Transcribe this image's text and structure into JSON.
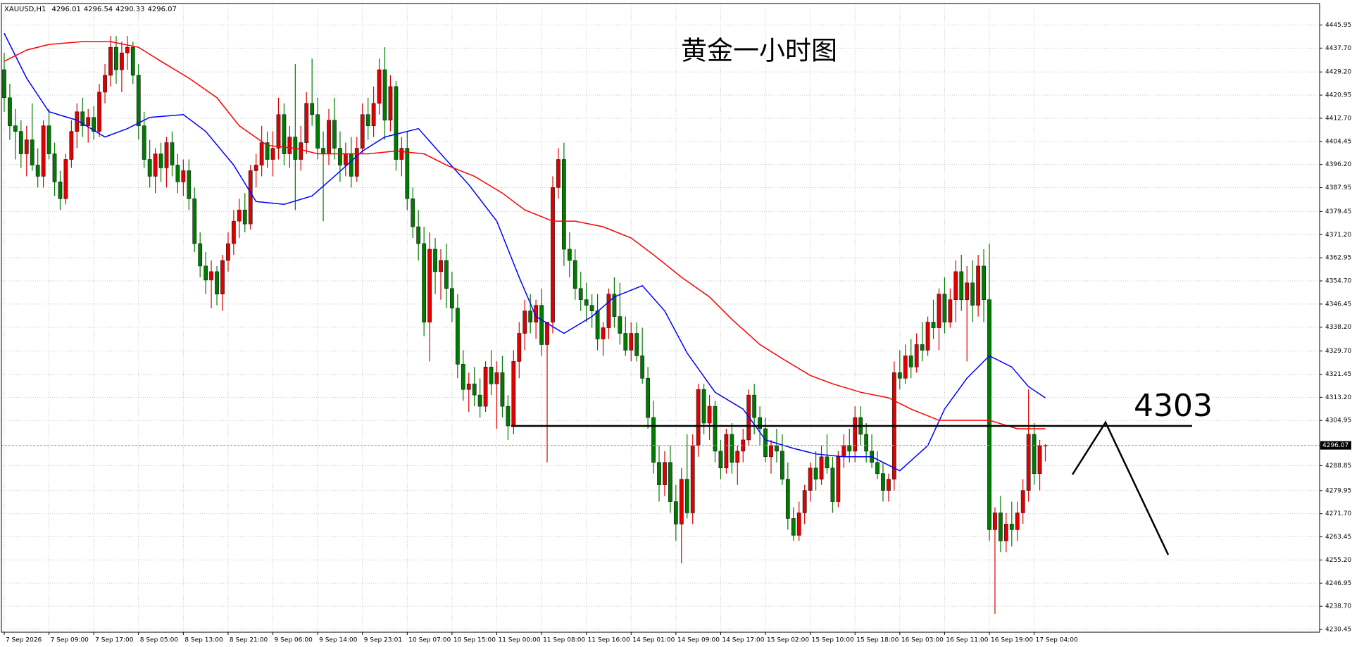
{
  "chart_data": {
    "type": "candlestick",
    "symbol": "XAUUSD,H1",
    "title": "黄金一小时图",
    "up_color": "#e00000",
    "down_color": "#007a00",
    "grid": true,
    "xlim": [
      -0.5,
      235
    ],
    "ylim": [
      4229.45,
      4453.6
    ],
    "yticks": [
      4445.95,
      {
        "value": 4437.7,
        "label": "4437.70"
      },
      {
        "value": 4429.2,
        "label": "4429.20"
      },
      4420.95,
      {
        "value": 4412.7,
        "label": "4412.70"
      },
      4404.45,
      {
        "value": 4396.2,
        "label": "4396.20"
      },
      4387.95,
      4379.45,
      {
        "value": 4371.2,
        "label": "4371.20"
      },
      4362.95,
      {
        "value": 4354.7,
        "label": "4354.70"
      },
      4346.45,
      {
        "value": 4338.2,
        "label": "4338.20"
      },
      {
        "value": 4329.7,
        "label": "4329.70"
      },
      4321.45,
      {
        "value": 4313.2,
        "label": "4313.20"
      },
      4304.95,
      4288.85,
      4279.95,
      {
        "value": 4271.7,
        "label": "4271.70"
      },
      4263.45,
      {
        "value": 4255.2,
        "label": "4255.20"
      },
      4246.95,
      {
        "value": 4238.7,
        "label": "4238.70"
      },
      4230.45
    ],
    "xticks": [
      {
        "value": 0,
        "label": "7 Sep 2026"
      },
      {
        "value": 8,
        "label": "7 Sep 09:00"
      },
      {
        "value": 16,
        "label": "7 Sep 17:00"
      },
      {
        "value": 24,
        "label": "8 Sep 05:00"
      },
      {
        "value": 32,
        "label": "8 Sep 13:00"
      },
      {
        "value": 40,
        "label": "8 Sep 21:00"
      },
      {
        "value": 48,
        "label": "9 Sep 06:00"
      },
      {
        "value": 56,
        "label": "9 Sep 14:00"
      },
      {
        "value": 64,
        "label": "9 Sep 23:01"
      },
      {
        "value": 72,
        "label": "10 Sep 07:00"
      },
      {
        "value": 80,
        "label": "10 Sep 15:00"
      },
      {
        "value": 88,
        "label": "11 Sep 00:00"
      },
      {
        "value": 96,
        "label": "11 Sep 08:00"
      },
      {
        "value": 104,
        "label": "11 Sep 16:00"
      },
      {
        "value": 112,
        "label": "14 Sep 01:00"
      },
      {
        "value": 120,
        "label": "14 Sep 09:00"
      },
      {
        "value": 128,
        "label": "14 Sep 17:00"
      },
      {
        "value": 136,
        "label": "15 Sep 02:00"
      },
      {
        "value": 144,
        "label": "15 Sep 10:00"
      },
      {
        "value": 152,
        "label": "15 Sep 18:00"
      },
      {
        "value": 160,
        "label": "16 Sep 03:00"
      },
      {
        "value": 168,
        "label": "16 Sep 11:00"
      },
      {
        "value": 176,
        "label": "16 Sep 19:00"
      },
      {
        "value": 184,
        "label": "17 Sep 04:00"
      }
    ],
    "candles": [
      [
        4430,
        4436,
        4415,
        4420
      ],
      [
        4420,
        4425,
        4405,
        4410
      ],
      [
        4410,
        4416,
        4398,
        4408
      ],
      [
        4408,
        4412,
        4395,
        4400
      ],
      [
        4400,
        4410,
        4392,
        4405
      ],
      [
        4405,
        4418,
        4394,
        4396
      ],
      [
        4396,
        4402,
        4388,
        4392
      ],
      [
        4392,
        4412,
        4388,
        4410
      ],
      [
        4410,
        4416,
        4398,
        4400
      ],
      [
        4400,
        4404,
        4385,
        4390
      ],
      [
        4390,
        4394,
        4380,
        4384
      ],
      [
        4384,
        4400,
        4382,
        4398
      ],
      [
        4398,
        4412,
        4395,
        4408
      ],
      [
        4408,
        4418,
        4402,
        4415
      ],
      [
        4415,
        4420,
        4406,
        4410
      ],
      [
        4410,
        4416,
        4404,
        4413
      ],
      [
        4413,
        4417,
        4405,
        4408
      ],
      [
        4408,
        4425,
        4406,
        4422
      ],
      [
        4422,
        4432,
        4418,
        4428
      ],
      [
        4428,
        4442,
        4424,
        4438
      ],
      [
        4438,
        4442,
        4425,
        4430
      ],
      [
        4430,
        4440,
        4422,
        4436
      ],
      [
        4436,
        4442,
        4430,
        4438
      ],
      [
        4438,
        4440,
        4425,
        4428
      ],
      [
        4428,
        4432,
        4405,
        4410
      ],
      [
        4410,
        4415,
        4395,
        4398
      ],
      [
        4398,
        4405,
        4388,
        4392
      ],
      [
        4392,
        4402,
        4386,
        4400
      ],
      [
        4400,
        4404,
        4390,
        4395
      ],
      [
        4395,
        4406,
        4388,
        4404
      ],
      [
        4404,
        4408,
        4392,
        4396
      ],
      [
        4396,
        4400,
        4386,
        4390
      ],
      [
        4390,
        4398,
        4385,
        4394
      ],
      [
        4394,
        4398,
        4380,
        4384
      ],
      [
        4384,
        4388,
        4365,
        4368
      ],
      [
        4368,
        4372,
        4356,
        4360
      ],
      [
        4360,
        4365,
        4350,
        4355
      ],
      [
        4355,
        4362,
        4345,
        4358
      ],
      [
        4358,
        4360,
        4346,
        4350
      ],
      [
        4350,
        4364,
        4344,
        4362
      ],
      [
        4362,
        4372,
        4358,
        4368
      ],
      [
        4368,
        4380,
        4364,
        4376
      ],
      [
        4376,
        4384,
        4370,
        4380
      ],
      [
        4380,
        4386,
        4372,
        4375
      ],
      [
        4375,
        4396,
        4373,
        4394
      ],
      [
        4394,
        4400,
        4388,
        4396
      ],
      [
        4396,
        4410,
        4392,
        4404
      ],
      [
        4404,
        4408,
        4395,
        4398
      ],
      [
        4398,
        4408,
        4392,
        4402
      ],
      [
        4402,
        4420,
        4398,
        4414
      ],
      [
        4414,
        4418,
        4396,
        4400
      ],
      [
        4400,
        4410,
        4395,
        4406
      ],
      [
        4406,
        4432,
        4380,
        4398
      ],
      [
        4398,
        4410,
        4394,
        4404
      ],
      [
        4404,
        4422,
        4400,
        4418
      ],
      [
        4418,
        4434,
        4410,
        4414
      ],
      [
        4414,
        4420,
        4398,
        4402
      ],
      [
        4402,
        4408,
        4376,
        4400
      ],
      [
        4400,
        4416,
        4396,
        4412
      ],
      [
        4412,
        4420,
        4398,
        4402
      ],
      [
        4402,
        4408,
        4390,
        4396
      ],
      [
        4396,
        4404,
        4392,
        4400
      ],
      [
        4400,
        4406,
        4388,
        4392
      ],
      [
        4392,
        4406,
        4390,
        4402
      ],
      [
        4402,
        4418,
        4400,
        4414
      ],
      [
        4414,
        4420,
        4405,
        4410
      ],
      [
        4410,
        4424,
        4406,
        4418
      ],
      [
        4418,
        4434,
        4414,
        4430
      ],
      [
        4430,
        4438,
        4405,
        4412
      ],
      [
        4412,
        4428,
        4408,
        4424
      ],
      [
        4424,
        4426,
        4394,
        4398
      ],
      [
        4398,
        4406,
        4392,
        4402
      ],
      [
        4402,
        4408,
        4380,
        4384
      ],
      [
        4384,
        4388,
        4370,
        4374
      ],
      [
        4374,
        4380,
        4362,
        4368
      ],
      [
        4368,
        4374,
        4335,
        4340
      ],
      [
        4340,
        4372,
        4326,
        4366
      ],
      [
        4366,
        4370,
        4350,
        4358
      ],
      [
        4358,
        4366,
        4348,
        4362
      ],
      [
        4362,
        4368,
        4345,
        4352
      ],
      [
        4352,
        4358,
        4340,
        4345
      ],
      [
        4345,
        4350,
        4320,
        4325
      ],
      [
        4325,
        4330,
        4312,
        4316
      ],
      [
        4316,
        4322,
        4308,
        4318
      ],
      [
        4318,
        4324,
        4310,
        4314
      ],
      [
        4314,
        4320,
        4306,
        4310
      ],
      [
        4310,
        4326,
        4308,
        4324
      ],
      [
        4324,
        4330,
        4314,
        4318
      ],
      [
        4318,
        4326,
        4302,
        4322
      ],
      [
        4322,
        4328,
        4306,
        4310
      ],
      [
        4310,
        4314,
        4298,
        4303
      ],
      [
        4303,
        4330,
        4300,
        4326
      ],
      [
        4326,
        4340,
        4320,
        4336
      ],
      [
        4336,
        4348,
        4330,
        4344
      ],
      [
        4344,
        4350,
        4336,
        4340
      ],
      [
        4340,
        4348,
        4334,
        4346
      ],
      [
        4346,
        4352,
        4328,
        4332
      ],
      [
        4332,
        4338,
        4290,
        4340
      ],
      [
        4340,
        4392,
        4336,
        4388
      ],
      [
        4388,
        4402,
        4384,
        4398
      ],
      [
        4398,
        4404,
        4360,
        4366
      ],
      [
        4366,
        4372,
        4356,
        4362
      ],
      [
        4362,
        4366,
        4348,
        4352
      ],
      [
        4352,
        4358,
        4344,
        4348
      ],
      [
        4348,
        4354,
        4340,
        4346
      ],
      [
        4346,
        4350,
        4338,
        4344
      ],
      [
        4344,
        4350,
        4330,
        4334
      ],
      [
        4334,
        4340,
        4328,
        4338
      ],
      [
        4338,
        4352,
        4334,
        4350
      ],
      [
        4350,
        4356,
        4338,
        4342
      ],
      [
        4342,
        4354,
        4332,
        4336
      ],
      [
        4336,
        4342,
        4328,
        4330
      ],
      [
        4330,
        4340,
        4326,
        4336
      ],
      [
        4336,
        4340,
        4326,
        4328
      ],
      [
        4328,
        4338,
        4318,
        4320
      ],
      [
        4320,
        4324,
        4302,
        4306
      ],
      [
        4306,
        4312,
        4286,
        4290
      ],
      [
        4290,
        4296,
        4276,
        4282
      ],
      [
        4282,
        4294,
        4278,
        4290
      ],
      [
        4290,
        4296,
        4272,
        4276
      ],
      [
        4276,
        4282,
        4262,
        4268
      ],
      [
        4268,
        4288,
        4254,
        4284
      ],
      [
        4284,
        4300,
        4270,
        4272
      ],
      [
        4272,
        4300,
        4268,
        4296
      ],
      [
        4296,
        4318,
        4292,
        4316
      ],
      [
        4316,
        4318,
        4300,
        4304
      ],
      [
        4304,
        4314,
        4298,
        4310
      ],
      [
        4310,
        4312,
        4290,
        4294
      ],
      [
        4294,
        4298,
        4284,
        4288
      ],
      [
        4288,
        4302,
        4286,
        4300
      ],
      [
        4300,
        4304,
        4286,
        4290
      ],
      [
        4290,
        4296,
        4282,
        4294
      ],
      [
        4294,
        4302,
        4290,
        4298
      ],
      [
        4298,
        4316,
        4296,
        4314
      ],
      [
        4314,
        4318,
        4300,
        4306
      ],
      [
        4306,
        4310,
        4296,
        4302
      ],
      [
        4302,
        4306,
        4290,
        4292
      ],
      [
        4292,
        4298,
        4286,
        4296
      ],
      [
        4296,
        4302,
        4290,
        4294
      ],
      [
        4294,
        4300,
        4282,
        4284
      ],
      [
        4284,
        4290,
        4266,
        4270
      ],
      [
        4270,
        4274,
        4262,
        4264
      ],
      [
        4264,
        4276,
        4262,
        4272
      ],
      [
        4272,
        4282,
        4268,
        4280
      ],
      [
        4280,
        4290,
        4276,
        4288
      ],
      [
        4288,
        4294,
        4280,
        4284
      ],
      [
        4284,
        4296,
        4282,
        4292
      ],
      [
        4292,
        4300,
        4286,
        4288
      ],
      [
        4288,
        4292,
        4272,
        4276
      ],
      [
        4276,
        4294,
        4274,
        4292
      ],
      [
        4292,
        4300,
        4288,
        4296
      ],
      [
        4296,
        4302,
        4290,
        4294
      ],
      [
        4294,
        4310,
        4290,
        4306
      ],
      [
        4306,
        4310,
        4296,
        4300
      ],
      [
        4300,
        4304,
        4290,
        4294
      ],
      [
        4294,
        4300,
        4288,
        4290
      ],
      [
        4290,
        4294,
        4284,
        4286
      ],
      [
        4286,
        4290,
        4276,
        4280
      ],
      [
        4280,
        4286,
        4276,
        4284
      ],
      [
        4284,
        4326,
        4280,
        4322
      ],
      [
        4322,
        4330,
        4316,
        4320
      ],
      [
        4320,
        4332,
        4318,
        4328
      ],
      [
        4328,
        4334,
        4320,
        4324
      ],
      [
        4324,
        4336,
        4322,
        4332
      ],
      [
        4332,
        4340,
        4326,
        4330
      ],
      [
        4330,
        4342,
        4328,
        4340
      ],
      [
        4340,
        4348,
        4334,
        4338
      ],
      [
        4338,
        4352,
        4330,
        4350
      ],
      [
        4350,
        4356,
        4336,
        4340
      ],
      [
        4340,
        4352,
        4338,
        4348
      ],
      [
        4348,
        4362,
        4340,
        4358
      ],
      [
        4358,
        4364,
        4344,
        4348
      ],
      [
        4348,
        4360,
        4326,
        4354
      ],
      [
        4354,
        4362,
        4340,
        4346
      ],
      [
        4346,
        4364,
        4342,
        4360
      ],
      [
        4360,
        4366,
        4340,
        4348
      ],
      [
        4348,
        4368,
        4262,
        4266
      ],
      [
        4266,
        4274,
        4236,
        4272
      ],
      [
        4272,
        4278,
        4258,
        4262
      ],
      [
        4262,
        4272,
        4258,
        4268
      ],
      [
        4268,
        4276,
        4260,
        4266
      ],
      [
        4266,
        4276,
        4262,
        4272
      ],
      [
        4272,
        4284,
        4268,
        4280
      ],
      [
        4280,
        4316,
        4276,
        4300
      ],
      [
        4300,
        4304,
        4282,
        4286
      ],
      [
        4286,
        4298,
        4280,
        4296
      ],
      [
        4296.01,
        4296.54,
        4290.33,
        4296.07
      ]
    ],
    "series": [
      {
        "color": "#0000ff",
        "x": [
          0,
          4,
          8,
          13,
          18,
          22,
          26,
          32,
          36,
          41,
          45,
          50,
          55,
          59,
          64,
          68,
          74,
          78,
          83,
          88,
          92,
          95,
          100,
          105,
          109,
          114,
          118,
          122,
          127,
          132,
          136,
          141,
          145,
          150,
          155,
          160,
          165,
          168,
          172,
          176,
          180,
          183,
          186
        ],
        "values": [
          4443,
          4427,
          4415,
          4412,
          4406,
          4409,
          4413,
          4414,
          4408,
          4396,
          4383,
          4382,
          4385,
          4392,
          4401,
          4406,
          4409,
          4400,
          4389,
          4376,
          4356,
          4342,
          4336,
          4342,
          4349,
          4353,
          4344,
          4329,
          4315,
          4309,
          4298,
          4295,
          4293,
          4292,
          4292,
          4287,
          4296,
          4309,
          4320,
          4328,
          4324,
          4317,
          4313
        ]
      },
      {
        "color": "#ff0000",
        "x": [
          0,
          4,
          8,
          14,
          19,
          24,
          28,
          33,
          38,
          42,
          47,
          52,
          56,
          61,
          65,
          70,
          75,
          79,
          84,
          89,
          93,
          98,
          102,
          107,
          112,
          116,
          121,
          126,
          130,
          135,
          139,
          144,
          148,
          153,
          158,
          162,
          167,
          172,
          176,
          181,
          186
        ],
        "values": [
          4433,
          4437,
          4439,
          4440,
          4440,
          4438,
          4433,
          4427,
          4420,
          4410,
          4403,
          4402,
          4400,
          4400,
          4400,
          4401,
          4400,
          4396,
          4392,
          4386,
          4380,
          4376,
          4376,
          4374,
          4370,
          4364,
          4356,
          4349,
          4341,
          4332,
          4327,
          4321,
          4318,
          4315,
          4313,
          4309,
          4305,
          4305,
          4305,
          4302,
          4302
        ]
      }
    ],
    "level": 4303
  }
}
